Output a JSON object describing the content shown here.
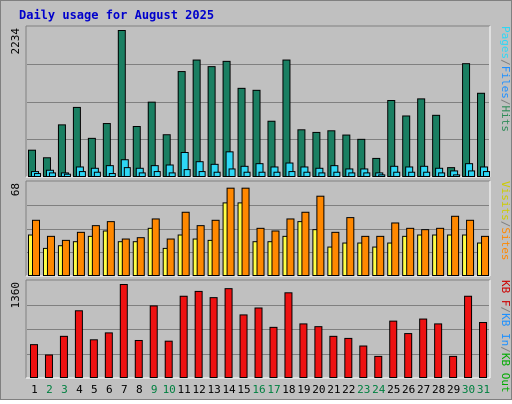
{
  "title": "Daily usage for August 2025",
  "colors": {
    "background": "#c0c0c0",
    "border_light": "#ffffff",
    "border_dark": "#808080",
    "title": "#0000cc",
    "gridline": "#808080",
    "weekday_label": "#000000",
    "weekend_label": "#008040",
    "hits": "#1a7f62",
    "files": "#2ed7f5",
    "pages": "#2ed7f5",
    "visits": "#ffff44",
    "sites": "#ff8800",
    "kb": "#ee1111"
  },
  "chart_data": [
    {
      "type": "bar",
      "panel": "top",
      "ymax_label": "2234",
      "ylim": [
        0,
        2234
      ],
      "grid": true,
      "legend_parts": [
        {
          "text": "Pages",
          "color": "#2ed7f5"
        },
        {
          "text": "/",
          "color": "#808080"
        },
        {
          "text": "Files",
          "color": "#1e90ff"
        },
        {
          "text": "/",
          "color": "#808080"
        },
        {
          "text": "Hits",
          "color": "#2e8b57"
        }
      ],
      "series": [
        {
          "name": "Hits",
          "color": "#1a7f62",
          "values": [
            415,
            300,
            800,
            1065,
            595,
            820,
            2234,
            775,
            1145,
            650,
            1610,
            1785,
            1685,
            1765,
            1355,
            1325,
            855,
            1785,
            725,
            685,
            710,
            645,
            580,
            290,
            1170,
            935,
            1195,
            945,
            150,
            1730,
            1280
          ]
        },
        {
          "name": "Files",
          "color": "#2ed7f5",
          "values": [
            90,
            110,
            70,
            160,
            140,
            180,
            270,
            140,
            180,
            190,
            380,
            240,
            200,
            390,
            170,
            210,
            160,
            220,
            160,
            140,
            180,
            130,
            130,
            70,
            170,
            160,
            170,
            140,
            100,
            210,
            160
          ]
        },
        {
          "name": "Pages",
          "color": "#2ed7f5",
          "values": [
            60,
            70,
            50,
            90,
            80,
            60,
            150,
            70,
            90,
            70,
            120,
            90,
            80,
            130,
            80,
            80,
            80,
            90,
            80,
            70,
            80,
            70,
            70,
            40,
            80,
            80,
            80,
            70,
            40,
            100,
            90
          ]
        }
      ]
    },
    {
      "type": "bar",
      "panel": "middle",
      "ymax_label": "68",
      "ylim": [
        0,
        68
      ],
      "grid": true,
      "legend_parts": [
        {
          "text": "Visits",
          "color": "#cccc00"
        },
        {
          "text": "/",
          "color": "#808080"
        },
        {
          "text": "Sites",
          "color": "#ff8800"
        }
      ],
      "series": [
        {
          "name": "Visits",
          "color": "#ffff44",
          "values": [
            31,
            21,
            23,
            26,
            30,
            34,
            26,
            26,
            36,
            21,
            31,
            28,
            27,
            55,
            55,
            26,
            26,
            30,
            41,
            35,
            22,
            25,
            25,
            22,
            25,
            30,
            31,
            31,
            31,
            31,
            25
          ]
        },
        {
          "name": "Sites",
          "color": "#ff8800",
          "values": [
            42,
            30,
            27,
            33,
            38,
            41,
            28,
            29,
            43,
            28,
            48,
            38,
            42,
            66,
            66,
            36,
            34,
            43,
            48,
            60,
            33,
            44,
            30,
            30,
            40,
            36,
            35,
            36,
            45,
            42,
            30
          ]
        }
      ]
    },
    {
      "type": "bar",
      "panel": "bottom",
      "ymax_label": "1360",
      "ylim": [
        0,
        1360
      ],
      "grid": true,
      "legend_parts": [
        {
          "text": "KB F",
          "color": "#cc0000"
        },
        {
          "text": "/",
          "color": "#808080"
        },
        {
          "text": "KB In",
          "color": "#1e90ff"
        },
        {
          "text": "/",
          "color": "#808080"
        },
        {
          "text": "KB Out",
          "color": "#00aa00"
        }
      ],
      "series": [
        {
          "name": "KB F",
          "color": "#ee1111",
          "values": [
            490,
            340,
            610,
            980,
            560,
            660,
            1360,
            550,
            1050,
            540,
            1190,
            1260,
            1170,
            1300,
            920,
            1020,
            740,
            1240,
            790,
            750,
            610,
            580,
            470,
            320,
            830,
            650,
            860,
            790,
            320,
            1190,
            810
          ]
        }
      ],
      "categories": [
        "1",
        "2",
        "3",
        "4",
        "5",
        "6",
        "7",
        "8",
        "9",
        "10",
        "11",
        "12",
        "13",
        "14",
        "15",
        "16",
        "17",
        "18",
        "19",
        "20",
        "21",
        "22",
        "23",
        "24",
        "25",
        "26",
        "27",
        "28",
        "29",
        "30",
        "31"
      ],
      "weekend_days": [
        "2",
        "3",
        "9",
        "10",
        "16",
        "17",
        "23",
        "24",
        "30",
        "31"
      ]
    }
  ]
}
